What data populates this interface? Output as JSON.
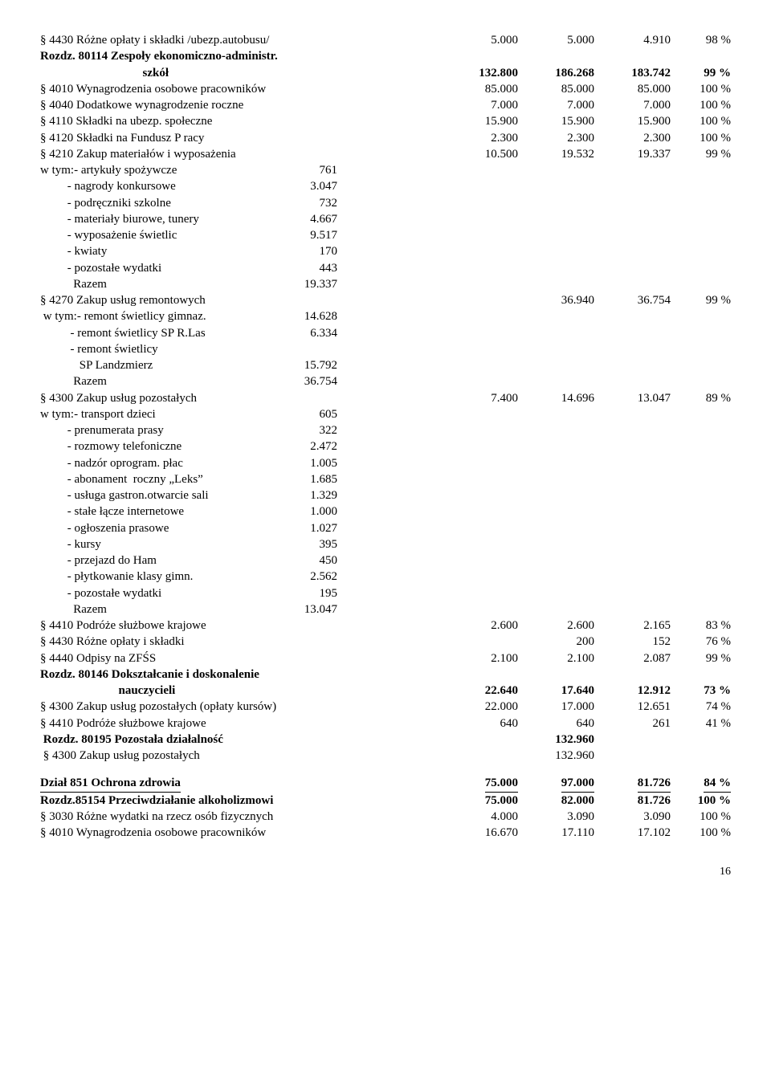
{
  "rows": [
    {
      "type": "row",
      "label": "§ 4430 Różne opłaty i składki /ubezp.autobusu/",
      "c1": "5.000",
      "c2": "5.000",
      "c3": "4.910",
      "c4": "98 %"
    },
    {
      "type": "rowbold",
      "label": "Rozdz. 80114 Zespoły ekonomiczno-administr."
    },
    {
      "type": "rowbold",
      "label": "                                  szkół",
      "c1": "132.800",
      "c2": "186.268",
      "c3": "183.742",
      "c4": "99 %"
    },
    {
      "type": "row",
      "label": "§ 4010 Wynagrodzenia osobowe pracowników",
      "c1": "85.000",
      "c2": "85.000",
      "c3": "85.000",
      "c4": "100 %"
    },
    {
      "type": "row",
      "label": "§ 4040 Dodatkowe wynagrodzenie roczne",
      "c1": "7.000",
      "c2": "7.000",
      "c3": "7.000",
      "c4": "100 %"
    },
    {
      "type": "row",
      "label": "§ 4110 Składki na ubezp. społeczne",
      "c1": "15.900",
      "c2": "15.900",
      "c3": "15.900",
      "c4": "100 %"
    },
    {
      "type": "row",
      "label": "§ 4120 Składki na Fundusz P racy",
      "c1": "2.300",
      "c2": "2.300",
      "c3": "2.300",
      "c4": "100 %"
    },
    {
      "type": "row",
      "label": "§ 4210 Zakup materiałów i wyposażenia",
      "c1": "10.500",
      "c2": "19.532",
      "c3": "19.337",
      "c4": "99 %"
    },
    {
      "type": "sub",
      "slabel": "w tym:- artykuły spożywcze",
      "sval": "761"
    },
    {
      "type": "sub",
      "slabel": "         - nagrody konkursowe",
      "sval": "3.047"
    },
    {
      "type": "sub",
      "slabel": "         - podręczniki szkolne",
      "sval": "732"
    },
    {
      "type": "sub",
      "slabel": "         - materiały biurowe, tunery",
      "sval": "4.667"
    },
    {
      "type": "sub",
      "slabel": "         - wyposażenie świetlic",
      "sval": "9.517"
    },
    {
      "type": "sub",
      "slabel": "         - kwiaty",
      "sval": "170"
    },
    {
      "type": "sub",
      "slabel": "         - pozostałe wydatki",
      "sval": "443"
    },
    {
      "type": "sub",
      "slabel": "           Razem",
      "sval": "19.337"
    },
    {
      "type": "row",
      "label": "§ 4270 Zakup usług remontowych",
      "c1": "",
      "c2": "36.940",
      "c3": "36.754",
      "c4": "99 %"
    },
    {
      "type": "sub",
      "slabel": " w tym:- remont świetlicy gimnaz.",
      "sval": "14.628"
    },
    {
      "type": "sub",
      "slabel": "          - remont świetlicy SP R.Las",
      "sval": "6.334"
    },
    {
      "type": "sub",
      "slabel": "          - remont świetlicy",
      "sval": ""
    },
    {
      "type": "sub",
      "slabel": "             SP Landzmierz",
      "sval": "15.792"
    },
    {
      "type": "sub",
      "slabel": "           Razem",
      "sval": "36.754"
    },
    {
      "type": "row",
      "label": "§ 4300 Zakup usług pozostałych",
      "c1": "7.400",
      "c2": "14.696",
      "c3": "13.047",
      "c4": "89 %"
    },
    {
      "type": "sub",
      "slabel": "w tym:- transport dzieci",
      "sval": "605"
    },
    {
      "type": "sub",
      "slabel": "         - prenumerata prasy",
      "sval": "322"
    },
    {
      "type": "sub",
      "slabel": "         - rozmowy telefoniczne",
      "sval": "2.472"
    },
    {
      "type": "sub",
      "slabel": "         - nadzór oprogram. płac",
      "sval": "1.005"
    },
    {
      "type": "sub",
      "slabel": "         - abonament  roczny „Leks”",
      "sval": "1.685"
    },
    {
      "type": "sub",
      "slabel": "         - usługa gastron.otwarcie sali",
      "sval": "1.329"
    },
    {
      "type": "sub",
      "slabel": "         - stałe łącze internetowe",
      "sval": "1.000"
    },
    {
      "type": "sub",
      "slabel": "         - ogłoszenia prasowe",
      "sval": "1.027"
    },
    {
      "type": "sub",
      "slabel": "         - kursy",
      "sval": "395"
    },
    {
      "type": "sub",
      "slabel": "         - przejazd do Ham",
      "sval": "450"
    },
    {
      "type": "sub",
      "slabel": "         - płytkowanie klasy gimn.",
      "sval": "2.562"
    },
    {
      "type": "sub",
      "slabel": "         - pozostałe wydatki",
      "sval": "195"
    },
    {
      "type": "sub",
      "slabel": "           Razem",
      "sval": "13.047"
    },
    {
      "type": "row",
      "label": "§ 4410 Podróże służbowe krajowe",
      "c1": "2.600",
      "c2": "2.600",
      "c3": "2.165",
      "c4": "83 %"
    },
    {
      "type": "row",
      "label": "§ 4430 Różne opłaty i składki",
      "c1": "",
      "c2": "200",
      "c3": "152",
      "c4": "76 %"
    },
    {
      "type": "row",
      "label": "§ 4440 Odpisy na ZFŚS",
      "c1": "2.100",
      "c2": "2.100",
      "c3": "2.087",
      "c4": "99 %"
    },
    {
      "type": "rowbold",
      "label": "Rozdz. 80146 Dokształcanie i doskonalenie"
    },
    {
      "type": "rowbold",
      "label": "                          nauczycieli",
      "c1": "22.640",
      "c2": "17.640",
      "c3": "12.912",
      "c4": "73 %"
    },
    {
      "type": "row",
      "label": "§ 4300 Zakup usług pozostałych (opłaty kursów)",
      "c1": "22.000",
      "c2": "17.000",
      "c3": "12.651",
      "c4": "74 %"
    },
    {
      "type": "row",
      "label": "§ 4410 Podróże służbowe krajowe",
      "c1": "640",
      "c2": "640",
      "c3": "261",
      "c4": "41 %"
    },
    {
      "type": "rowbold",
      "label": " Rozdz. 80195 Pozostała działalność",
      "c1": "",
      "c2": "132.960",
      "c3": "",
      "c4": ""
    },
    {
      "type": "row",
      "label": " § 4300 Zakup usług pozostałych",
      "c1": "",
      "c2": "132.960",
      "c3": "",
      "c4": ""
    },
    {
      "type": "spacer"
    },
    {
      "type": "rowboldU",
      "label": "Dział 851 Ochrona zdrowia",
      "c1": "75.000",
      "c2": "97.000",
      "c3": "81.726",
      "c4": "84 %"
    },
    {
      "type": "rowbold",
      "label": "Rozdz.85154 Przeciwdziałanie alkoholizmowi",
      "c1": "75.000",
      "c2": "82.000",
      "c3": "81.726",
      "c4": "100 %"
    },
    {
      "type": "row",
      "label": "§ 3030 Różne wydatki na rzecz osób fizycznych",
      "c1": "4.000",
      "c2": "3.090",
      "c3": "3.090",
      "c4": "100 %"
    },
    {
      "type": "row",
      "label": "§ 4010 Wynagrodzenia osobowe pracowników",
      "c1": "16.670",
      "c2": "17.110",
      "c3": "17.102",
      "c4": "100 %"
    }
  ],
  "pageNumber": "16"
}
